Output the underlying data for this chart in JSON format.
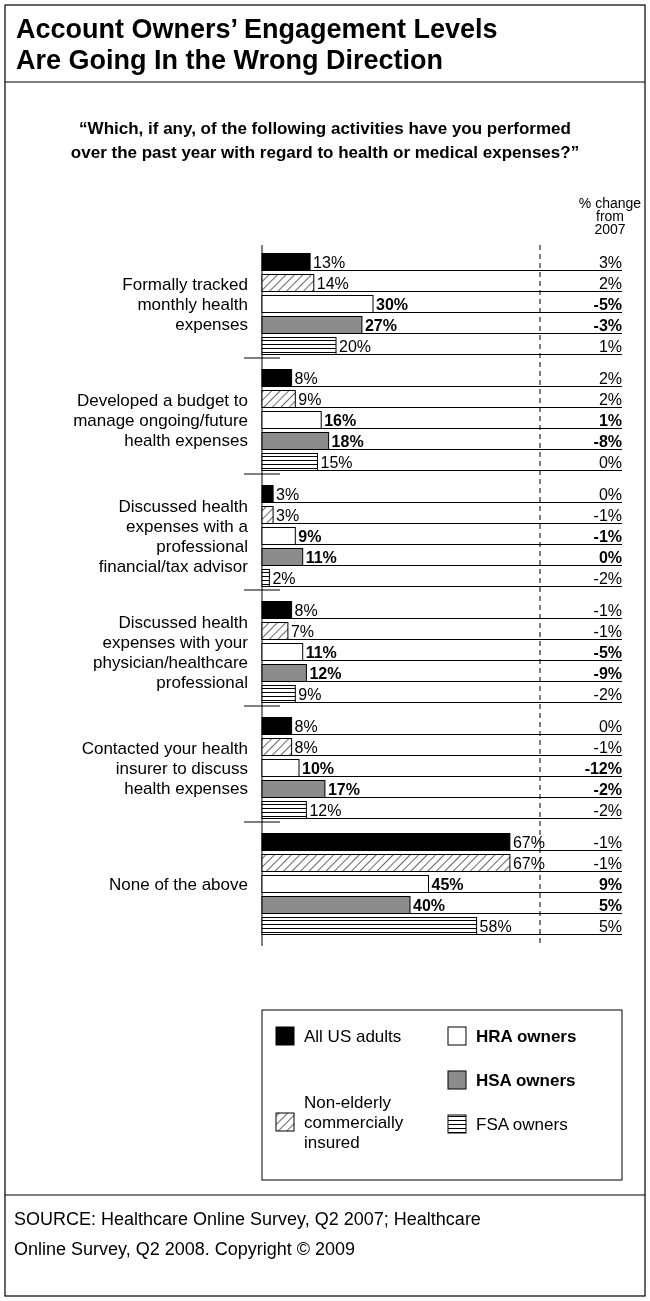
{
  "chart_data": {
    "type": "bar",
    "orientation": "horizontal",
    "title": "Account Owners’ Engagement Levels Are Going In the Wrong Direction",
    "subtitle": "“Which, if any, of the following activities have you performed over the past year with regard to health or medical expenses?”",
    "categories": [
      "Formally tracked monthly health expenses",
      "Developed a budget to manage ongoing/future health expenses",
      "Discussed health expenses with a professional financial/tax advisor",
      "Discussed health expenses with your physician/healthcare professional",
      "Contacted your health insurer to discuss health expenses",
      "None of the above"
    ],
    "series": [
      {
        "name": "All US adults",
        "color": "#000000",
        "values": [
          13,
          8,
          3,
          8,
          8,
          67
        ],
        "value_labels": [
          "13%",
          "8%",
          "3%",
          "8%",
          "8%",
          "67%"
        ]
      },
      {
        "name": "Non-elderly commercially insured",
        "color": "#000000",
        "values": [
          14,
          9,
          3,
          7,
          8,
          67
        ],
        "value_labels": [
          "14%",
          "9%",
          "3%",
          "7%",
          "8%",
          "67%"
        ]
      },
      {
        "name": "HRA owners",
        "color": "#ffffff",
        "values": [
          30,
          16,
          9,
          11,
          10,
          45
        ],
        "value_labels": [
          "30%",
          "16%",
          "9%",
          "11%",
          "10%",
          "45%"
        ]
      },
      {
        "name": "HSA owners",
        "color": "#8c8c8c",
        "values": [
          27,
          18,
          11,
          12,
          17,
          40
        ],
        "value_labels": [
          "27%",
          "18%",
          "11%",
          "12%",
          "17%",
          "40%"
        ]
      },
      {
        "name": "FSA owners",
        "color": "#000000",
        "values": [
          20,
          15,
          2,
          9,
          12,
          58
        ],
        "value_labels": [
          "20%",
          "15%",
          "2%",
          "9%",
          "12%",
          "58%"
        ]
      }
    ],
    "annotations": [
      "% change from 2007",
      "3%",
      "2%",
      "-5%",
      "-3%",
      "1%",
      "2%",
      "2%",
      "1%",
      "-8%",
      "0%",
      "0%",
      "-1%",
      "-1%",
      "0%",
      "-2%",
      "-1%",
      "-1%",
      "-5%",
      "-9%",
      "-2%",
      "0%",
      "-1%",
      "-12%",
      "-2%",
      "-2%",
      "-1%",
      "-1%",
      "9%",
      "5%",
      "5%",
      "SOURCE: Healthcare Online Survey, Q2 2007; Healthcare Online Survey, Q2 2008. Copyright © 2009"
    ],
    "legend": "bottom"
  }
}
